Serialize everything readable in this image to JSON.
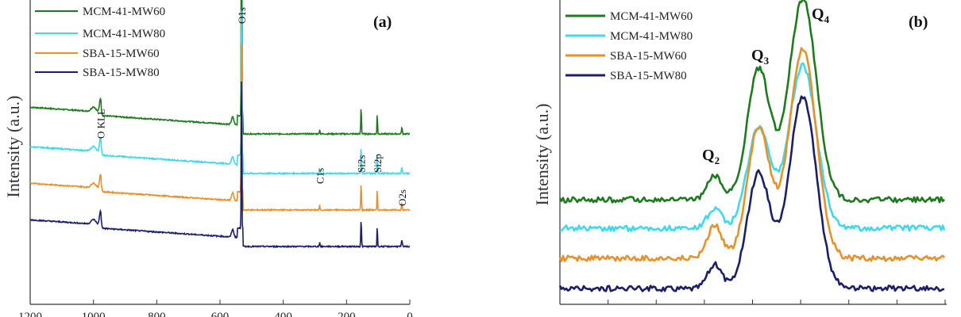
{
  "chart_data": [
    {
      "panel": "(a)",
      "type": "line",
      "ylabel": "Intensity (a.u.)",
      "xlabel": "",
      "x_ticks": [
        "1200",
        "1000",
        "800",
        "600",
        "400",
        "200",
        "0"
      ],
      "xlim": [
        1200,
        0
      ],
      "legend_position": "top-left",
      "series": [
        {
          "name": "MCM-41-MW60",
          "color": "#1e7a1e",
          "baseline": 0.62
        },
        {
          "name": "MCM-41-MW80",
          "color": "#3fd8ee",
          "baseline": 0.49
        },
        {
          "name": "SBA-15-MW60",
          "color": "#e8902a",
          "baseline": 0.37
        },
        {
          "name": "SBA-15-MW80",
          "color": "#1b1f6b",
          "baseline": 0.25
        }
      ],
      "peaks": [
        {
          "label": "O KLL",
          "x": 978
        },
        {
          "label": "O1s",
          "x": 532
        },
        {
          "label": "C1s",
          "x": 285
        },
        {
          "label": "Si2s",
          "x": 154
        },
        {
          "label": "Si2p",
          "x": 103
        },
        {
          "label": "O2s",
          "x": 25
        }
      ]
    },
    {
      "panel": "(b)",
      "type": "line",
      "ylabel": "Intensity (a.u.)",
      "xlabel": "",
      "legend_position": "top-left",
      "peak_labels": [
        {
          "label": "Q",
          "sub": "2"
        },
        {
          "label": "Q",
          "sub": "3"
        },
        {
          "label": "Q",
          "sub": "4"
        }
      ],
      "series": [
        {
          "name": "MCM-41-MW60",
          "color": "#1e7a1e"
        },
        {
          "name": "MCM-41-MW80",
          "color": "#3fd8ee"
        },
        {
          "name": "SBA-15-MW60",
          "color": "#e8902a"
        },
        {
          "name": "SBA-15-MW80",
          "color": "#1b1f6b"
        }
      ]
    }
  ]
}
